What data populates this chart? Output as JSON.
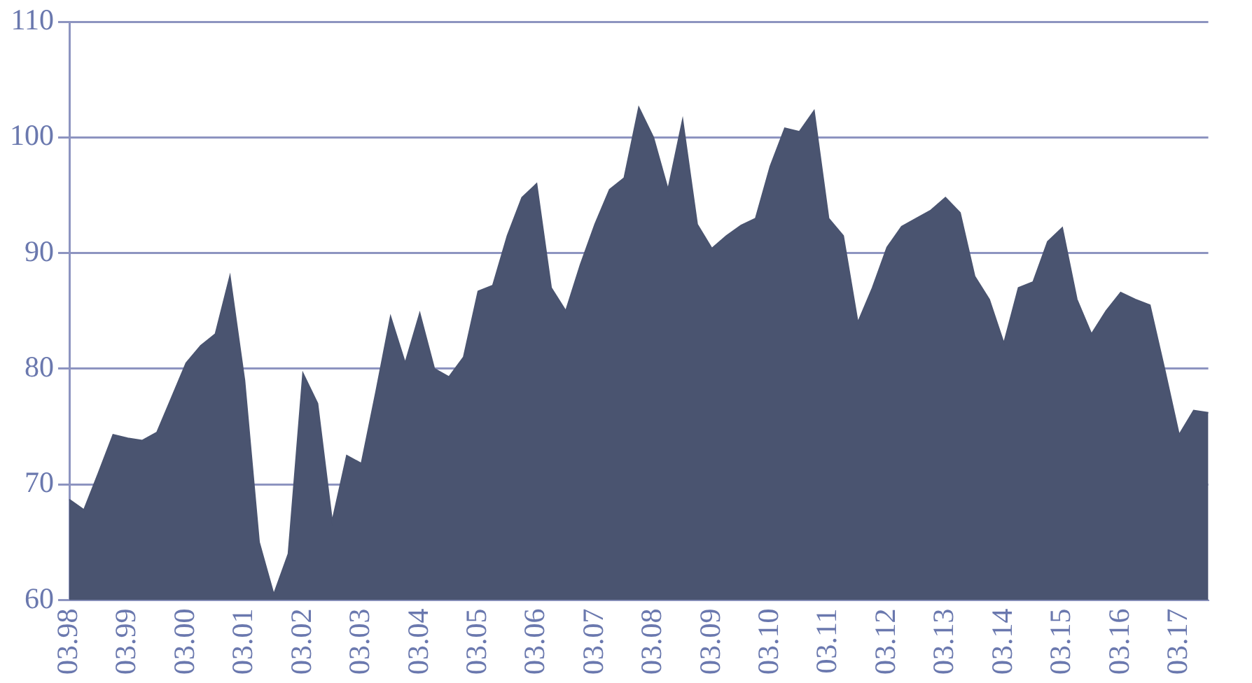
{
  "chart_data": {
    "type": "area",
    "categories": [
      "03.98",
      null,
      null,
      null,
      "03.99",
      null,
      null,
      null,
      "03.00",
      null,
      null,
      null,
      "03.01",
      null,
      null,
      null,
      "03.02",
      null,
      null,
      null,
      "03.03",
      null,
      null,
      null,
      "03.04",
      null,
      null,
      null,
      "03.05",
      null,
      null,
      null,
      "03.06",
      null,
      null,
      null,
      "03.07",
      null,
      null,
      null,
      "03.08",
      null,
      null,
      null,
      "03.09",
      null,
      null,
      null,
      "03.10",
      null,
      null,
      null,
      "03.11",
      null,
      null,
      null,
      "03.12",
      null,
      null,
      null,
      "03.13",
      null,
      null,
      null,
      "03.14",
      null,
      null,
      null,
      "03.15",
      null,
      null,
      null,
      "03.16",
      null,
      null,
      null,
      "03.17",
      null,
      null
    ],
    "values": [
      68.7,
      67.8,
      71,
      74.3,
      74,
      73.8,
      74.5,
      77.5,
      80.5,
      82,
      83,
      88,
      79,
      65,
      60.5,
      64,
      79.6,
      77,
      66.8,
      72.5,
      71.8,
      78,
      84.5,
      80.5,
      84.8,
      80,
      79.3,
      81,
      86.7,
      87.2,
      91.5,
      94.8,
      96,
      87,
      85,
      89,
      92.5,
      95.5,
      96.5,
      102.6,
      100,
      95.5,
      101.5,
      92.5,
      90.4,
      91.5,
      92.4,
      93,
      97.5,
      100.8,
      100.5,
      102.3,
      93,
      91.5,
      84,
      87,
      90.5,
      92.3,
      93,
      93.7,
      94.8,
      93.5,
      88,
      86,
      82.2,
      87,
      87.5,
      91,
      92.2,
      86,
      83,
      85,
      86.6,
      86,
      85.5,
      80,
      74.3,
      76.4,
      76.2
    ],
    "color": "#4a5470",
    "ylim": [
      60,
      110
    ],
    "yticks": [
      60,
      70,
      80,
      90,
      100,
      110
    ],
    "grid": "y",
    "marker": "none"
  }
}
